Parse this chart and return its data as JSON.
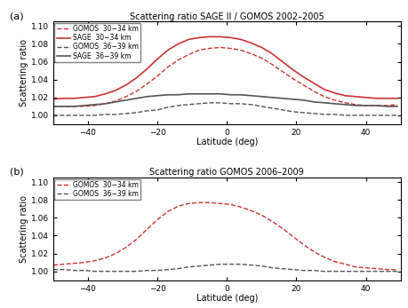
{
  "title_a": "Scattering ratio SAGE II / GOMOS 2002–2005",
  "title_b": "Scattering ratio GOMOS 2006–2009",
  "xlabel": "Latitude (deg)",
  "ylabel": "Scattering ratio",
  "xlim": [
    -50,
    50
  ],
  "ylim_a": [
    0.99,
    1.105
  ],
  "ylim_b": [
    0.99,
    1.105
  ],
  "yticks_a": [
    1.0,
    1.02,
    1.04,
    1.06,
    1.08,
    1.1
  ],
  "yticks_b": [
    1.0,
    1.02,
    1.04,
    1.06,
    1.08,
    1.1
  ],
  "xticks": [
    -40,
    -20,
    0,
    20,
    40
  ],
  "panel_a": {
    "gomos_30_34": {
      "label": "GOMOS  30−34 km",
      "color": "#cc3333",
      "linestyle": "dashed",
      "dashes": [
        4,
        2
      ],
      "lw": 1.0,
      "latitudes": [
        -50,
        -47,
        -44,
        -41,
        -38,
        -35,
        -32,
        -29,
        -26,
        -23,
        -20,
        -17,
        -14,
        -11,
        -8,
        -5,
        -2,
        1,
        4,
        7,
        10,
        13,
        16,
        19,
        22,
        25,
        28,
        31,
        34,
        37,
        40,
        43,
        46,
        49
      ],
      "values": [
        1.01,
        1.01,
        1.01,
        1.01,
        1.011,
        1.013,
        1.016,
        1.021,
        1.027,
        1.035,
        1.044,
        1.054,
        1.062,
        1.068,
        1.073,
        1.075,
        1.076,
        1.075,
        1.073,
        1.069,
        1.064,
        1.057,
        1.049,
        1.041,
        1.034,
        1.027,
        1.021,
        1.017,
        1.014,
        1.012,
        1.011,
        1.011,
        1.011,
        1.012
      ]
    },
    "sage_30_34": {
      "label": "SAGE  30−34 km",
      "color": "#cc3333",
      "linestyle": "solid",
      "dashes": [],
      "lw": 1.2,
      "latitudes": [
        -50,
        -47,
        -44,
        -41,
        -38,
        -35,
        -32,
        -29,
        -26,
        -23,
        -20,
        -17,
        -14,
        -11,
        -8,
        -5,
        -2,
        1,
        4,
        7,
        10,
        13,
        16,
        19,
        22,
        25,
        28,
        31,
        34,
        37,
        40,
        43,
        46,
        49
      ],
      "values": [
        1.018,
        1.019,
        1.019,
        1.02,
        1.021,
        1.024,
        1.028,
        1.034,
        1.042,
        1.052,
        1.063,
        1.073,
        1.08,
        1.085,
        1.087,
        1.088,
        1.088,
        1.087,
        1.085,
        1.081,
        1.076,
        1.069,
        1.06,
        1.051,
        1.043,
        1.036,
        1.029,
        1.025,
        1.022,
        1.021,
        1.02,
        1.019,
        1.019,
        1.019
      ]
    },
    "gomos_36_39": {
      "label": "GOMOS  36−39 km",
      "color": "#555555",
      "linestyle": "dashed",
      "dashes": [
        4,
        2
      ],
      "lw": 1.0,
      "latitudes": [
        -50,
        -47,
        -44,
        -41,
        -38,
        -35,
        -32,
        -29,
        -26,
        -23,
        -20,
        -17,
        -14,
        -11,
        -8,
        -5,
        -2,
        1,
        4,
        7,
        10,
        13,
        16,
        19,
        22,
        25,
        28,
        31,
        34,
        37,
        40,
        43,
        46,
        49
      ],
      "values": [
        1.0,
        1.0,
        1.0,
        1.0,
        1.0,
        1.001,
        1.001,
        1.002,
        1.003,
        1.005,
        1.006,
        1.009,
        1.011,
        1.012,
        1.013,
        1.014,
        1.014,
        1.013,
        1.013,
        1.012,
        1.01,
        1.008,
        1.006,
        1.004,
        1.003,
        1.002,
        1.001,
        1.001,
        1.0,
        1.0,
        1.0,
        1.0,
        1.0,
        1.0
      ]
    },
    "sage_36_39": {
      "label": "SAGE  36−39 km",
      "color": "#555555",
      "linestyle": "solid",
      "dashes": [],
      "lw": 1.2,
      "latitudes": [
        -50,
        -47,
        -44,
        -41,
        -38,
        -35,
        -32,
        -29,
        -26,
        -23,
        -20,
        -17,
        -14,
        -11,
        -8,
        -5,
        -2,
        1,
        4,
        7,
        10,
        13,
        16,
        19,
        22,
        25,
        28,
        31,
        34,
        37,
        40,
        43,
        46,
        49
      ],
      "values": [
        1.01,
        1.01,
        1.01,
        1.011,
        1.012,
        1.013,
        1.015,
        1.017,
        1.019,
        1.021,
        1.022,
        1.023,
        1.023,
        1.024,
        1.024,
        1.024,
        1.024,
        1.023,
        1.023,
        1.022,
        1.021,
        1.02,
        1.019,
        1.018,
        1.017,
        1.015,
        1.014,
        1.013,
        1.012,
        1.011,
        1.011,
        1.011,
        1.01,
        1.01
      ]
    }
  },
  "panel_b": {
    "gomos_30_34": {
      "label": "GOMOS  30−34 km",
      "color": "#cc3333",
      "linestyle": "dashed",
      "dashes": [
        4,
        2
      ],
      "lw": 1.0,
      "latitudes": [
        -50,
        -47,
        -44,
        -41,
        -38,
        -35,
        -32,
        -29,
        -26,
        -23,
        -20,
        -17,
        -14,
        -11,
        -8,
        -5,
        -2,
        1,
        4,
        7,
        10,
        13,
        16,
        19,
        22,
        25,
        28,
        31,
        34,
        37,
        40,
        43,
        46,
        49
      ],
      "values": [
        1.007,
        1.008,
        1.009,
        1.01,
        1.012,
        1.015,
        1.02,
        1.027,
        1.036,
        1.047,
        1.058,
        1.067,
        1.073,
        1.076,
        1.077,
        1.077,
        1.076,
        1.075,
        1.072,
        1.068,
        1.063,
        1.056,
        1.048,
        1.039,
        1.03,
        1.022,
        1.016,
        1.011,
        1.008,
        1.005,
        1.004,
        1.003,
        1.002,
        1.002
      ]
    },
    "gomos_36_39": {
      "label": "GOMOS  36−39 km",
      "color": "#555555",
      "linestyle": "dashed",
      "dashes": [
        4,
        2
      ],
      "lw": 1.0,
      "latitudes": [
        -50,
        -47,
        -44,
        -41,
        -38,
        -35,
        -32,
        -29,
        -26,
        -23,
        -20,
        -17,
        -14,
        -11,
        -8,
        -5,
        -2,
        1,
        4,
        7,
        10,
        13,
        16,
        19,
        22,
        25,
        28,
        31,
        34,
        37,
        40,
        43,
        46,
        49
      ],
      "values": [
        1.002,
        1.002,
        1.001,
        1.001,
        1.0,
        1.0,
        1.0,
        1.0,
        1.0,
        1.001,
        1.001,
        1.002,
        1.003,
        1.005,
        1.006,
        1.007,
        1.008,
        1.008,
        1.008,
        1.007,
        1.006,
        1.004,
        1.003,
        1.002,
        1.001,
        1.001,
        1.0,
        1.0,
        1.0,
        1.0,
        1.0,
        1.0,
        1.0,
        1.0
      ]
    }
  }
}
